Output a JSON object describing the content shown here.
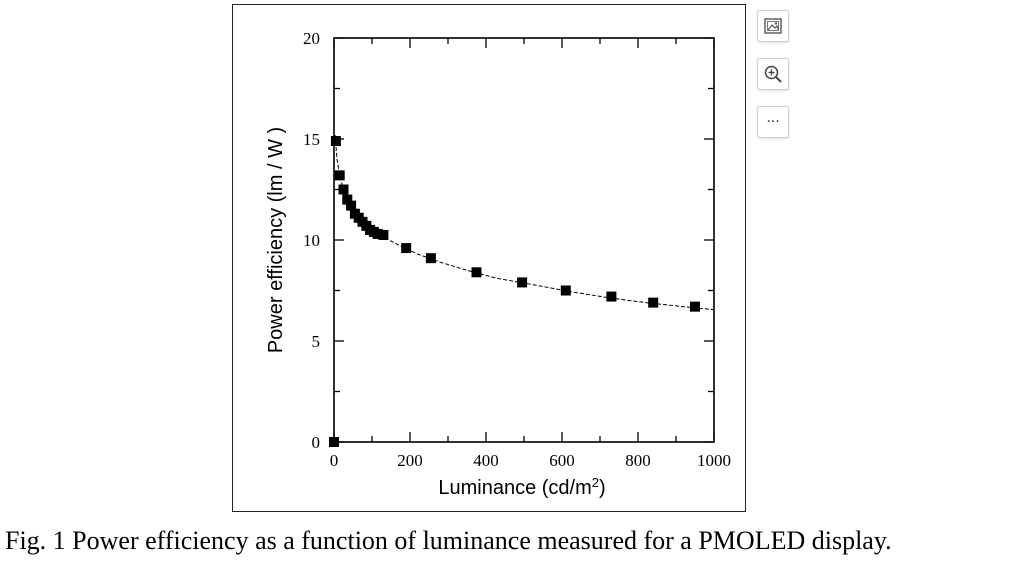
{
  "caption": "Fig. 1 Power efficiency as a function of luminance measured for a PMOLED display.",
  "toolbar": {
    "buttons": [
      {
        "icon": "image-icon"
      },
      {
        "icon": "zoom-in-icon"
      },
      {
        "icon": "more-icon",
        "label": "···"
      }
    ]
  },
  "chart_data": {
    "type": "scatter",
    "title": "",
    "xlabel": "Luminance (cd/m",
    "xlabel_sup": "2",
    "xlabel_suffix": ")",
    "ylabel": "Power efficiency (lm / W )",
    "xlim": [
      0,
      1000
    ],
    "ylim": [
      0,
      20
    ],
    "xticks": [
      0,
      200,
      400,
      600,
      800,
      1000
    ],
    "yticks": [
      0,
      5,
      10,
      15,
      20
    ],
    "grid": false,
    "marker": "square",
    "line": "dashed",
    "series": [
      {
        "x": [
          0,
          5,
          15,
          25,
          35,
          45,
          55,
          65,
          75,
          85,
          95,
          105,
          115,
          130,
          190,
          255,
          375,
          495,
          610,
          730,
          840,
          950
        ],
        "y": [
          0,
          14.9,
          13.2,
          12.5,
          12.0,
          11.7,
          11.3,
          11.1,
          10.9,
          10.7,
          10.5,
          10.4,
          10.3,
          10.25,
          9.6,
          9.1,
          8.4,
          7.9,
          7.5,
          7.2,
          6.9,
          6.7
        ]
      }
    ],
    "fit_curve": {
      "x": [
        3,
        8,
        15,
        25,
        40,
        60,
        80,
        100,
        130,
        170,
        220,
        280,
        350,
        430,
        520,
        620,
        720,
        820,
        920,
        1000
      ],
      "y": [
        15.2,
        14.0,
        13.2,
        12.5,
        11.9,
        11.3,
        10.9,
        10.55,
        10.15,
        9.75,
        9.3,
        8.9,
        8.5,
        8.1,
        7.8,
        7.45,
        7.15,
        6.9,
        6.7,
        6.55
      ]
    }
  }
}
